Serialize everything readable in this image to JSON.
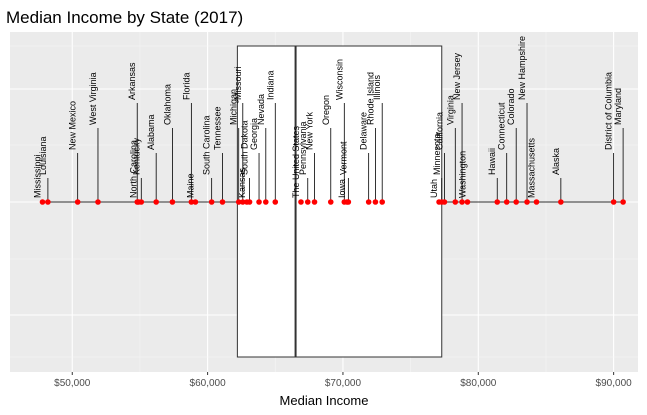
{
  "chart_data": {
    "type": "scatter",
    "title": "Median Income by State (2017)",
    "xlabel": "Median Income",
    "ylabel": "",
    "xlim": [
      45400,
      91800
    ],
    "x_ticks": [
      50000,
      60000,
      70000,
      80000,
      90000
    ],
    "x_tick_labels": [
      "$50,000",
      "$60,000",
      "$70,000",
      "$80,000",
      "$90,000"
    ],
    "grid": true,
    "legend": "none",
    "point_color": "#ff0000",
    "boxplot": {
      "q1": 62200,
      "median": 66500,
      "q3": 77300
    },
    "points": [
      {
        "label": "Mississippi",
        "x": 47800
      },
      {
        "label": "Louisiana",
        "x": 48200
      },
      {
        "label": "New Mexico",
        "x": 50400
      },
      {
        "label": "West Virginia",
        "x": 51900
      },
      {
        "label": "North Carolina",
        "x": 54900
      },
      {
        "label": "Kentucky",
        "x": 55100
      },
      {
        "label": "Arkansas",
        "x": 54800
      },
      {
        "label": "Alabama",
        "x": 56200
      },
      {
        "label": "Oklahoma",
        "x": 57400
      },
      {
        "label": "Florida",
        "x": 58800
      },
      {
        "label": "Maine",
        "x": 59100
      },
      {
        "label": "South Carolina",
        "x": 60300
      },
      {
        "label": "Tennessee",
        "x": 61100
      },
      {
        "label": "Michigan",
        "x": 62300
      },
      {
        "label": "Missouri",
        "x": 62600
      },
      {
        "label": "Kansas",
        "x": 62900
      },
      {
        "label": "South Dakota",
        "x": 63100
      },
      {
        "label": "Georgia",
        "x": 63800
      },
      {
        "label": "Nevada",
        "x": 64300
      },
      {
        "label": "Indiana",
        "x": 65000
      },
      {
        "label": "The United States",
        "x": 66900
      },
      {
        "label": "Pennsylvania",
        "x": 67400
      },
      {
        "label": "New York",
        "x": 67900
      },
      {
        "label": "Oregon",
        "x": 69100
      },
      {
        "label": "Wisconsin",
        "x": 70100
      },
      {
        "label": "Iowa",
        "x": 70300
      },
      {
        "label": "Vermont",
        "x": 70400
      },
      {
        "label": "Delaware",
        "x": 71900
      },
      {
        "label": "Rhode Island",
        "x": 72400
      },
      {
        "label": "Illinois",
        "x": 72900
      },
      {
        "label": "Utah",
        "x": 77100
      },
      {
        "label": "Minnesota",
        "x": 77300
      },
      {
        "label": "California",
        "x": 77500
      },
      {
        "label": "Virginia",
        "x": 78300
      },
      {
        "label": "New Jersey",
        "x": 78800
      },
      {
        "label": "Washington",
        "x": 79200
      },
      {
        "label": "Hawaii",
        "x": 81400
      },
      {
        "label": "Connecticut",
        "x": 82100
      },
      {
        "label": "Colorado",
        "x": 82800
      },
      {
        "label": "New Hampshire",
        "x": 83600
      },
      {
        "label": "Massachusetts",
        "x": 84300
      },
      {
        "label": "Alaska",
        "x": 86100
      },
      {
        "label": "District of Columbia",
        "x": 90000
      },
      {
        "label": "Maryland",
        "x": 90700
      }
    ]
  }
}
